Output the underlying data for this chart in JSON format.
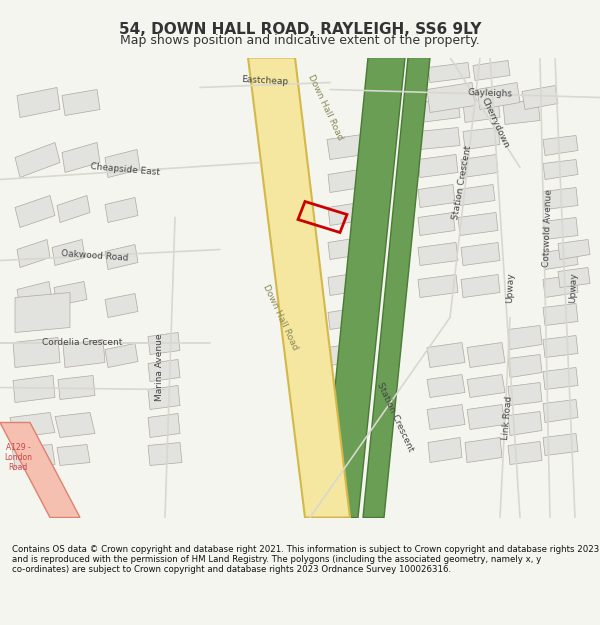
{
  "title": "54, DOWN HALL ROAD, RAYLEIGH, SS6 9LY",
  "subtitle": "Map shows position and indicative extent of the property.",
  "footer": "Contains OS data © Crown copyright and database right 2021. This information is subject to Crown copyright and database rights 2023 and is reproduced with the permission of HM Land Registry. The polygons (including the associated geometry, namely x, y co-ordinates) are subject to Crown copyright and database rights 2023 Ordnance Survey 100026316.",
  "bg_color": "#f5f5f0",
  "map_bg": "#f8f8f5",
  "road_yellow": "#f5e6a0",
  "road_yellow_border": "#d4b84a",
  "green_fill": "#6a9e55",
  "green_border": "#4a7a35",
  "pink_fill": "#f5c0b0",
  "pink_border": "#e08070",
  "building_fill": "#e2e2de",
  "building_border": "#b0a8a0",
  "road_color": "#d8d8d0",
  "property_box_color": "#cc0000",
  "text_color": "#333333",
  "road_label_color": "#444444"
}
